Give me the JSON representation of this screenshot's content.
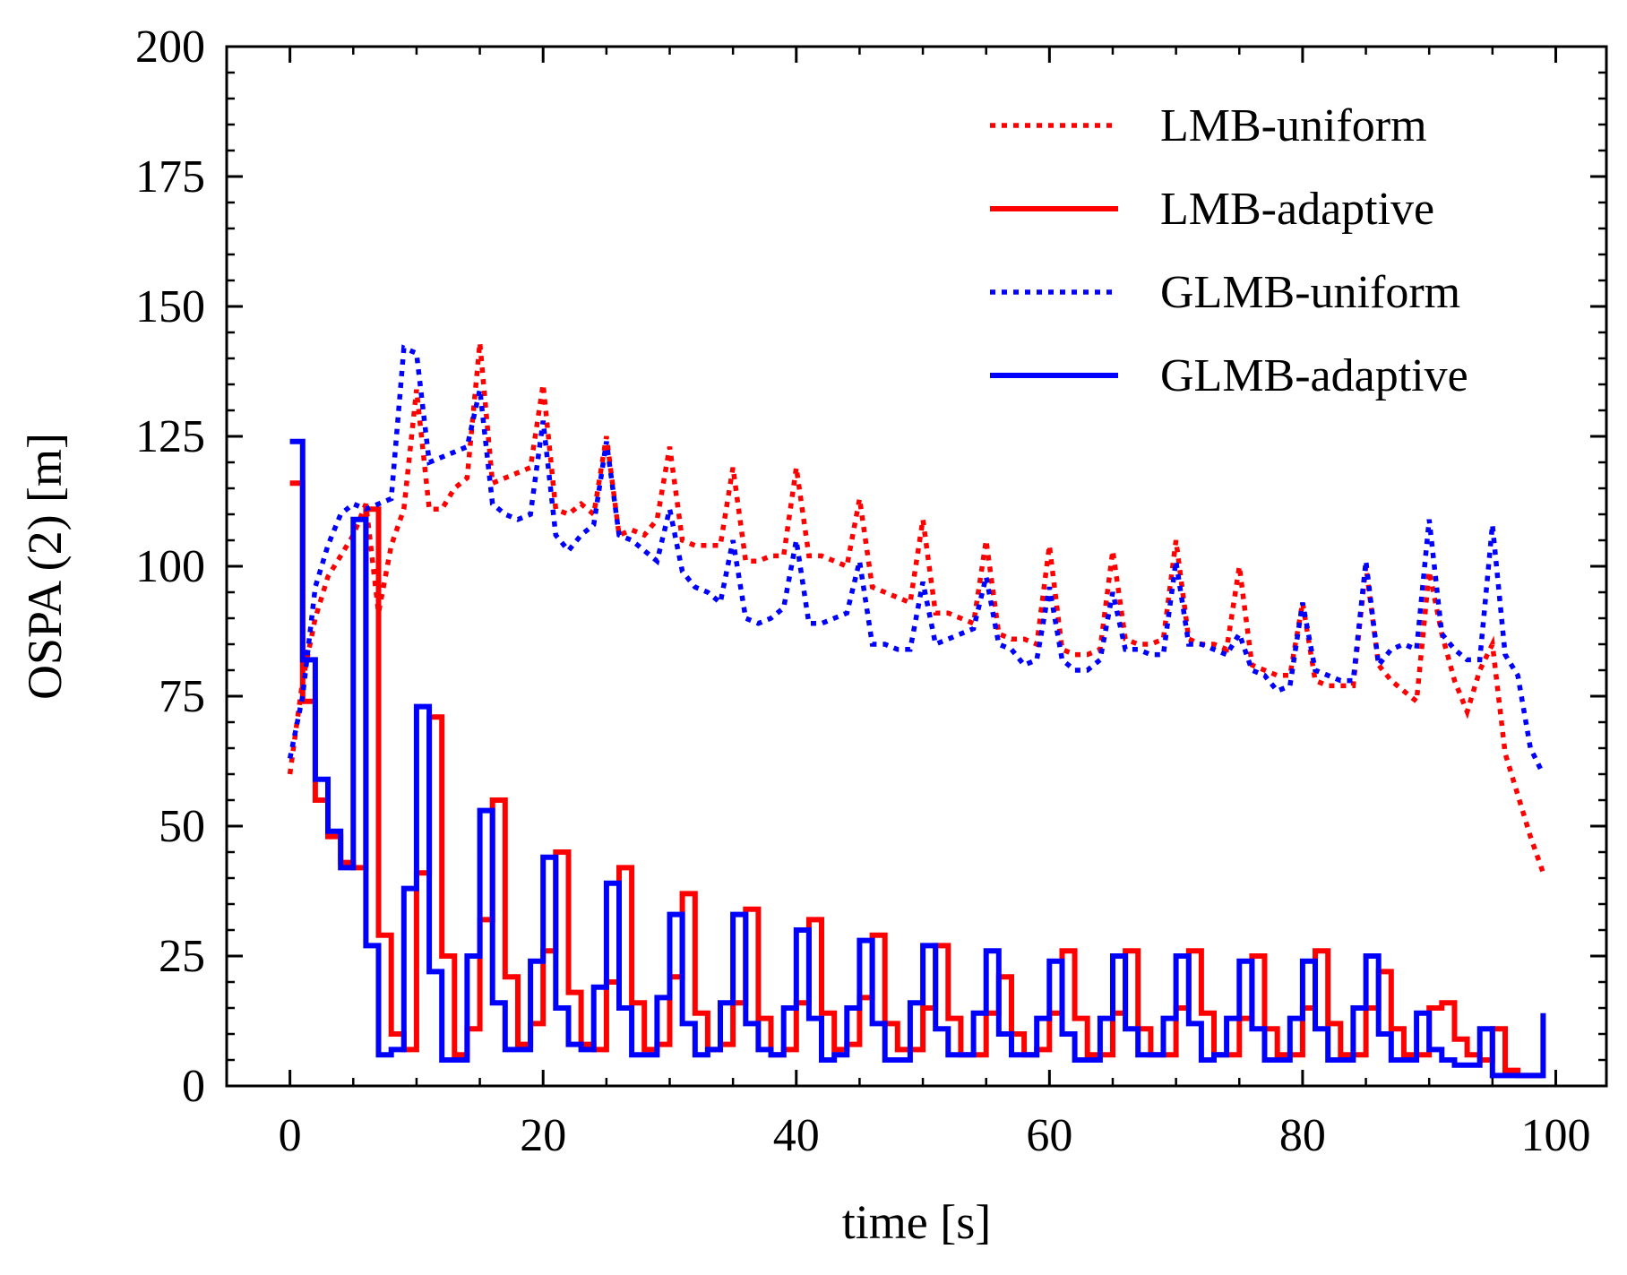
{
  "chart_data": {
    "type": "line",
    "title": "",
    "xlabel": "time [s]",
    "ylabel": "OSPA (2) [m]",
    "xlim": [
      -5,
      104
    ],
    "ylim": [
      0,
      200
    ],
    "xticks": [
      0,
      20,
      40,
      60,
      80,
      100
    ],
    "yticks": [
      0,
      25,
      50,
      75,
      100,
      125,
      150,
      175,
      200
    ],
    "xtick_labels": [
      "0",
      "20",
      "40",
      "60",
      "80",
      "100"
    ],
    "ytick_labels": [
      "0",
      "25",
      "50",
      "75",
      "100",
      "125",
      "150",
      "175",
      "200"
    ],
    "grid": false,
    "legend_position": "top-right",
    "series": [
      {
        "name": "LMB-uniform",
        "color": "#ff0000",
        "style": "dotted",
        "x": [
          0,
          1,
          2,
          3,
          4,
          5,
          6,
          7,
          8,
          9,
          10,
          11,
          12,
          13,
          14,
          15,
          16,
          17,
          18,
          19,
          20,
          21,
          22,
          23,
          24,
          25,
          26,
          27,
          28,
          29,
          30,
          31,
          32,
          33,
          34,
          35,
          36,
          37,
          38,
          39,
          40,
          41,
          42,
          43,
          44,
          45,
          46,
          47,
          48,
          49,
          50,
          51,
          52,
          53,
          54,
          55,
          56,
          57,
          58,
          59,
          60,
          61,
          62,
          63,
          64,
          65,
          66,
          67,
          68,
          69,
          70,
          71,
          72,
          73,
          74,
          75,
          76,
          77,
          78,
          79,
          80,
          81,
          82,
          83,
          84,
          85,
          86,
          87,
          88,
          89,
          90,
          91,
          92,
          93,
          94,
          95,
          96,
          97,
          98,
          99
        ],
        "y": [
          60,
          78,
          90,
          98,
          102,
          106,
          112,
          91,
          104,
          111,
          134,
          111,
          111,
          115,
          117,
          143,
          116,
          117,
          118,
          119,
          135,
          111,
          110,
          112,
          110,
          125,
          106,
          107,
          106,
          109,
          123,
          105,
          104,
          104,
          104,
          119,
          101,
          101,
          102,
          102,
          119,
          102,
          102,
          101,
          100,
          113,
          96,
          95,
          94,
          93,
          109,
          91,
          91,
          90,
          89,
          105,
          87,
          86,
          86,
          85,
          104,
          84,
          83,
          83,
          84,
          103,
          86,
          85,
          85,
          86,
          105,
          86,
          85,
          85,
          84,
          100,
          81,
          80,
          79,
          79,
          93,
          78,
          77,
          77,
          77,
          100,
          81,
          78,
          76,
          74,
          99,
          87,
          78,
          72,
          80,
          85,
          64,
          56,
          48,
          41
        ]
      },
      {
        "name": "LMB-adaptive",
        "color": "#ff0000",
        "style": "solid",
        "x": [
          0,
          1,
          2,
          3,
          4,
          5,
          6,
          7,
          8,
          9,
          10,
          11,
          12,
          13,
          14,
          15,
          16,
          17,
          18,
          19,
          20,
          21,
          22,
          23,
          24,
          25,
          26,
          27,
          28,
          29,
          30,
          31,
          32,
          33,
          34,
          35,
          36,
          37,
          38,
          39,
          40,
          41,
          42,
          43,
          44,
          45,
          46,
          47,
          48,
          49,
          50,
          51,
          52,
          53,
          54,
          55,
          56,
          57,
          58,
          59,
          60,
          61,
          62,
          63,
          64,
          65,
          66,
          67,
          68,
          69,
          70,
          71,
          72,
          73,
          74,
          75,
          76,
          77,
          78,
          79,
          80,
          81,
          82,
          83,
          84,
          85,
          86,
          87,
          88,
          89,
          90,
          91,
          92,
          93,
          94,
          95,
          96,
          97,
          98,
          99
        ],
        "y": [
          116,
          74,
          55,
          48,
          43,
          42,
          111,
          29,
          10,
          7,
          41,
          71,
          25,
          6,
          11,
          32,
          55,
          21,
          8,
          12,
          26,
          45,
          18,
          8,
          7,
          20,
          42,
          16,
          7,
          8,
          21,
          37,
          14,
          7,
          8,
          16,
          34,
          13,
          6,
          7,
          16,
          32,
          14,
          7,
          8,
          17,
          29,
          12,
          7,
          7,
          15,
          27,
          13,
          6,
          6,
          14,
          21,
          10,
          6,
          7,
          14,
          26,
          13,
          6,
          6,
          14,
          26,
          11,
          6,
          6,
          15,
          26,
          14,
          6,
          6,
          13,
          25,
          11,
          6,
          6,
          15,
          26,
          12,
          6,
          6,
          15,
          22,
          11,
          6,
          6,
          15,
          16,
          9,
          6,
          5,
          11,
          3,
          2,
          2,
          2
        ]
      },
      {
        "name": "GLMB-uniform",
        "color": "#0000ff",
        "style": "dotted",
        "x": [
          0,
          1,
          2,
          3,
          4,
          5,
          6,
          7,
          8,
          9,
          10,
          11,
          12,
          13,
          14,
          15,
          16,
          17,
          18,
          19,
          20,
          21,
          22,
          23,
          24,
          25,
          26,
          27,
          28,
          29,
          30,
          31,
          32,
          33,
          34,
          35,
          36,
          37,
          38,
          39,
          40,
          41,
          42,
          43,
          44,
          45,
          46,
          47,
          48,
          49,
          50,
          51,
          52,
          53,
          54,
          55,
          56,
          57,
          58,
          59,
          60,
          61,
          62,
          63,
          64,
          65,
          66,
          67,
          68,
          69,
          70,
          71,
          72,
          73,
          74,
          75,
          76,
          77,
          78,
          79,
          80,
          81,
          82,
          83,
          84,
          85,
          86,
          87,
          88,
          89,
          90,
          91,
          92,
          93,
          94,
          95,
          96,
          97,
          98,
          99
        ],
        "y": [
          63,
          75,
          96,
          104,
          110,
          112,
          111,
          112,
          113,
          142,
          141,
          120,
          121,
          122,
          123,
          134,
          112,
          110,
          109,
          110,
          128,
          106,
          103,
          106,
          108,
          124,
          106,
          105,
          103,
          101,
          111,
          99,
          96,
          95,
          93,
          105,
          90,
          89,
          90,
          92,
          105,
          89,
          89,
          90,
          91,
          101,
          85,
          85,
          84,
          84,
          97,
          85,
          86,
          87,
          88,
          98,
          85,
          84,
          81,
          82,
          96,
          82,
          80,
          80,
          82,
          95,
          84,
          84,
          83,
          83,
          101,
          85,
          85,
          84,
          83,
          87,
          80,
          79,
          76,
          77,
          93,
          80,
          79,
          78,
          78,
          101,
          81,
          84,
          85,
          84,
          109,
          87,
          84,
          82,
          82,
          108,
          83,
          79,
          65,
          60
        ]
      },
      {
        "name": "GLMB-adaptive",
        "color": "#0000ff",
        "style": "solid",
        "x": [
          0,
          1,
          2,
          3,
          4,
          5,
          6,
          7,
          8,
          9,
          10,
          11,
          12,
          13,
          14,
          15,
          16,
          17,
          18,
          19,
          20,
          21,
          22,
          23,
          24,
          25,
          26,
          27,
          28,
          29,
          30,
          31,
          32,
          33,
          34,
          35,
          36,
          37,
          38,
          39,
          40,
          41,
          42,
          43,
          44,
          45,
          46,
          47,
          48,
          49,
          50,
          51,
          52,
          53,
          54,
          55,
          56,
          57,
          58,
          59,
          60,
          61,
          62,
          63,
          64,
          65,
          66,
          67,
          68,
          69,
          70,
          71,
          72,
          73,
          74,
          75,
          76,
          77,
          78,
          79,
          80,
          81,
          82,
          83,
          84,
          85,
          86,
          87,
          88,
          89,
          90,
          91,
          92,
          93,
          94,
          95,
          96,
          97,
          98,
          99
        ],
        "y": [
          124,
          82,
          59,
          49,
          42,
          109,
          27,
          6,
          7,
          38,
          73,
          22,
          5,
          5,
          25,
          53,
          16,
          7,
          7,
          24,
          44,
          15,
          8,
          7,
          19,
          39,
          15,
          6,
          6,
          17,
          33,
          12,
          6,
          7,
          16,
          33,
          12,
          7,
          6,
          15,
          30,
          13,
          5,
          6,
          15,
          28,
          12,
          5,
          5,
          16,
          27,
          11,
          6,
          6,
          14,
          26,
          10,
          6,
          6,
          13,
          24,
          10,
          5,
          5,
          13,
          25,
          11,
          6,
          6,
          13,
          25,
          12,
          5,
          6,
          13,
          24,
          11,
          5,
          5,
          13,
          24,
          11,
          5,
          5,
          15,
          25,
          10,
          5,
          5,
          14,
          7,
          5,
          4,
          4,
          11,
          2,
          2,
          2,
          2,
          14
        ]
      }
    ]
  }
}
